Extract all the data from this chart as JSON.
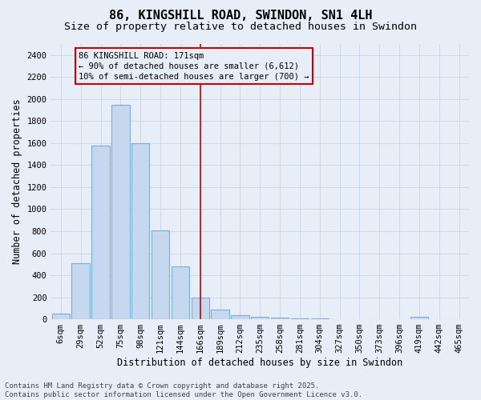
{
  "title": "86, KINGSHILL ROAD, SWINDON, SN1 4LH",
  "subtitle": "Size of property relative to detached houses in Swindon",
  "xlabel": "Distribution of detached houses by size in Swindon",
  "ylabel": "Number of detached properties",
  "categories": [
    "6sqm",
    "29sqm",
    "52sqm",
    "75sqm",
    "98sqm",
    "121sqm",
    "144sqm",
    "166sqm",
    "189sqm",
    "212sqm",
    "235sqm",
    "258sqm",
    "281sqm",
    "304sqm",
    "327sqm",
    "350sqm",
    "373sqm",
    "396sqm",
    "419sqm",
    "442sqm",
    "465sqm"
  ],
  "values": [
    50,
    510,
    1580,
    1950,
    1600,
    810,
    480,
    195,
    90,
    40,
    22,
    15,
    8,
    5,
    3,
    2,
    1,
    0,
    20,
    0,
    0
  ],
  "bar_color": "#c5d8f0",
  "bar_edge_color": "#7aafd4",
  "vline_idx": 7,
  "vline_color": "#cc0000",
  "annotation_text": "86 KINGSHILL ROAD: 171sqm\n← 90% of detached houses are smaller (6,612)\n10% of semi-detached houses are larger (700) →",
  "annotation_box_color": "#cc0000",
  "ylim": [
    0,
    2500
  ],
  "yticks": [
    0,
    200,
    400,
    600,
    800,
    1000,
    1200,
    1400,
    1600,
    1800,
    2000,
    2200,
    2400
  ],
  "grid_color": "#c8d4e8",
  "bg_color": "#e8eef8",
  "footnote": "Contains HM Land Registry data © Crown copyright and database right 2025.\nContains public sector information licensed under the Open Government Licence v3.0.",
  "title_fontsize": 11,
  "subtitle_fontsize": 9.5,
  "axis_label_fontsize": 8.5,
  "tick_fontsize": 7.5,
  "annotation_fontsize": 7.5,
  "footnote_fontsize": 6.5
}
